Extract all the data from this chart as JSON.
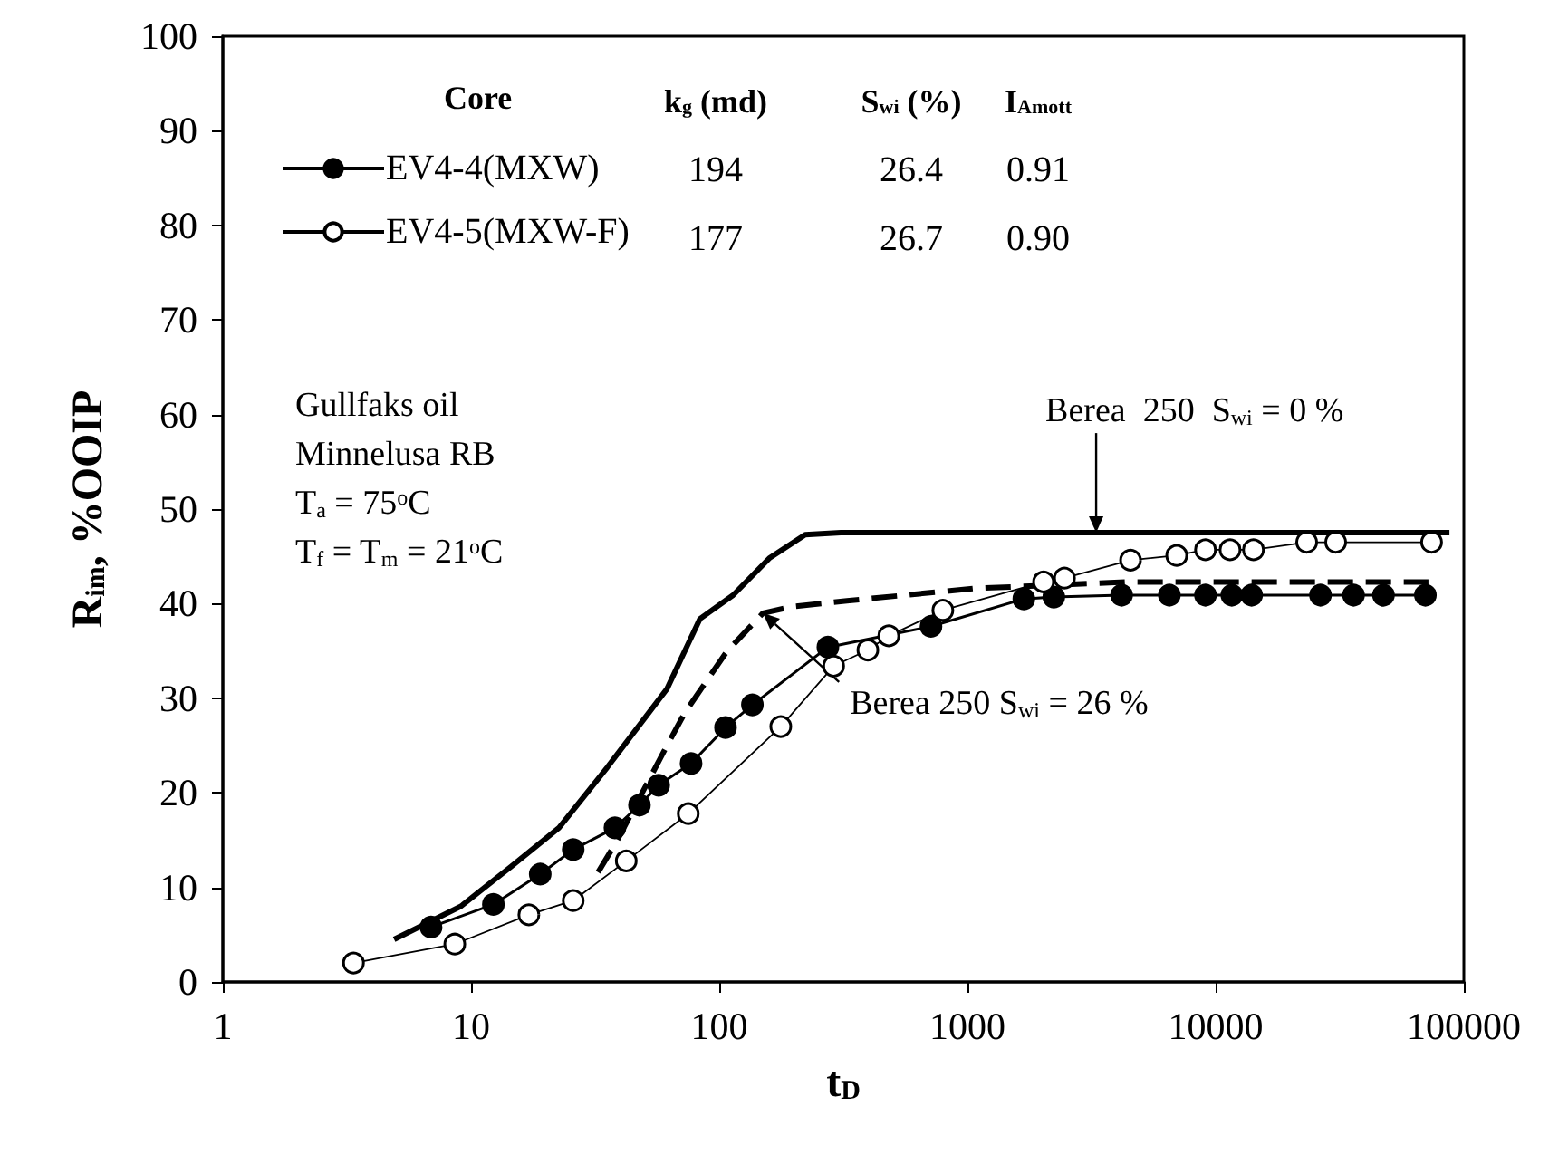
{
  "chart_data": {
    "type": "line",
    "xlabel": "t$_{D}$",
    "ylabel": "R$_{im}$, %OOIP",
    "legend_title": "Core",
    "legend": "top left",
    "log": "x",
    "grid": false,
    "xlim": [
      1,
      100000
    ],
    "xticks": [
      1,
      10,
      100,
      1000,
      10000,
      100000
    ],
    "ylim": [
      0,
      100
    ],
    "yticks": [
      0,
      10,
      20,
      30,
      40,
      50,
      60,
      70,
      80,
      90,
      100
    ],
    "series": [
      {
        "name": "EV4-4(MXW)",
        "color": "#000000",
        "marker": "circle",
        "line_style": "solid",
        "x": [
          6.9,
          12.3,
          19,
          25.8,
          38,
          47.7,
          57,
          77,
          106,
          136,
          274,
          713,
          1687,
          2228,
          4180,
          6510,
          9100,
          11620,
          13960,
          26450,
          35940,
          47450,
          70000
        ],
        "values": [
          5.8,
          8.2,
          11.4,
          14.0,
          16.3,
          18.7,
          20.8,
          23.1,
          26.9,
          29.3,
          35.4,
          37.6,
          40.5,
          40.7,
          40.9,
          40.9,
          40.9,
          40.9,
          40.9,
          40.9,
          40.9,
          40.9,
          40.9
        ]
      },
      {
        "name": "EV4-5(MXW-F)",
        "color": "#000000",
        "marker": "open_circle",
        "line_style": "solid",
        "x": [
          3.36,
          8.6,
          17.1,
          25.8,
          42.2,
          75,
          177,
          289,
          397,
          482,
          796,
          2026,
          2460,
          4540,
          6970,
          9100,
          11430,
          14200,
          23270,
          30450,
          74130
        ],
        "values": [
          2.0,
          4.0,
          7.1,
          8.6,
          12.8,
          17.8,
          27.0,
          33.4,
          35.1,
          36.6,
          39.3,
          42.3,
          42.7,
          44.6,
          45.1,
          45.7,
          45.7,
          45.7,
          46.5,
          46.5,
          46.5
        ]
      },
      {
        "color": "#000000",
        "marker": "none",
        "line_style": "solid",
        "x": [
          4.9,
          9.1,
          14.5,
          22.6,
          35.4,
          61.6,
          83.6,
          113.7,
          159,
          222,
          309,
          87500
        ],
        "values": [
          4.5,
          8.0,
          12.2,
          16.3,
          22.7,
          31.0,
          38.4,
          40.9,
          44.8,
          47.3,
          47.5,
          47.5
        ]
      },
      {
        "color": "#000000",
        "marker": "none",
        "line_style": "dashed",
        "x": [
          32.5,
          38.5,
          61.6,
          72.8,
          107,
          150,
          198,
          327,
          1052,
          4463,
          72000
        ],
        "values": [
          11.6,
          14.8,
          25.0,
          28.5,
          34.9,
          39.0,
          39.7,
          40.3,
          41.6,
          42.3,
          42.3
        ]
      }
    ],
    "annotations": [
      "k$_{g}$ (md)",
      "S$_{wi}$ (%)",
      "I$_{Amott}$",
      "194",
      "26.4",
      "0.91",
      "177",
      "26.7",
      "0.90",
      "Gullfaks oil",
      "Minnelusa RB",
      "T$_{a}$ = 75$^{o}$C",
      "T$_{f}$ = T$_{m}$ = 21$^{o}$C",
      {
        "text": "Berea  250  S$_{wi}$ = 0 %",
        "x": 3300,
        "y": 47.5
      },
      {
        "text": "Berea 250 S$_{wi}$ = 26 %",
        "x": 150,
        "y": 39.0
      }
    ]
  }
}
